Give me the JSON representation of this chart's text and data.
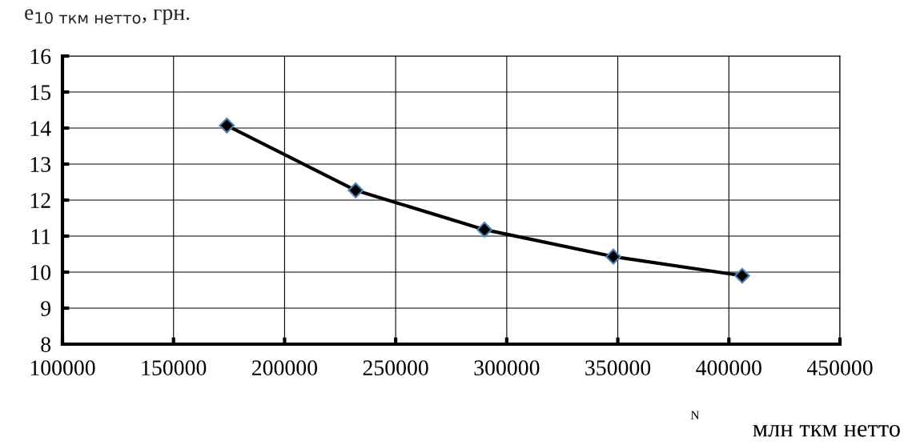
{
  "chart_data": {
    "type": "line",
    "ylabel": "e$_{10 ткм нетто}$, грн.",
    "xlabel": "млн ткм нетто",
    "annotations": [
      "N"
    ],
    "x": [
      174000,
      232000,
      290000,
      348000,
      406000
    ],
    "series": [
      {
        "color": "#000000",
        "values": [
          14.07,
          12.27,
          11.18,
          10.43,
          9.9
        ]
      }
    ],
    "marker": "diamond",
    "line_style": "solid",
    "grid": true,
    "legend": false,
    "xlim": [
      100000,
      450000
    ],
    "xticks": [
      100000,
      150000,
      200000,
      250000,
      300000,
      350000,
      400000,
      450000
    ],
    "ylim": [
      8,
      16
    ],
    "yticks": [
      8,
      9,
      10,
      11,
      12,
      13,
      14,
      15,
      16
    ]
  }
}
